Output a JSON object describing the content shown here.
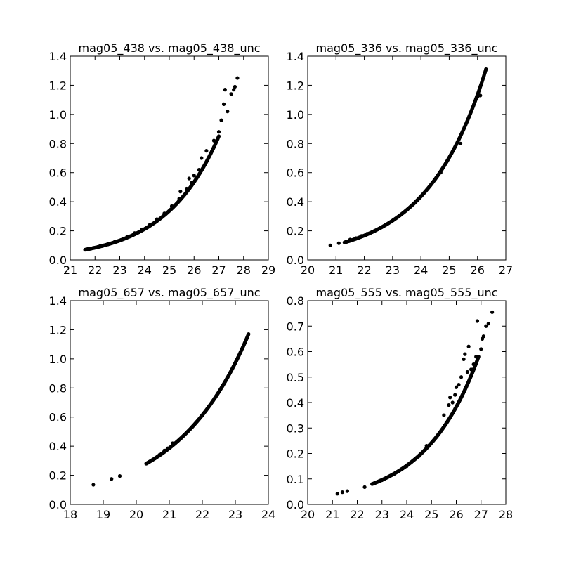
{
  "chart_data": [
    {
      "type": "scatter",
      "title": "mag05_438 vs. mag05_438_unc",
      "xlabel": "",
      "ylabel": "",
      "xlim": [
        21,
        29
      ],
      "ylim": [
        0.0,
        1.4
      ],
      "xticks": [
        "21",
        "22",
        "23",
        "24",
        "25",
        "26",
        "27",
        "28",
        "29"
      ],
      "yticks": [
        "0.0",
        "0.2",
        "0.4",
        "0.6",
        "0.8",
        "1.0",
        "1.2",
        "1.4"
      ],
      "grid": false,
      "marker_color": "#000000",
      "curve": {
        "x0": 21.6,
        "x1": 27.0,
        "y0": 0.07,
        "y1": 0.85
      },
      "points": [
        [
          21.6,
          0.07
        ],
        [
          21.7,
          0.075
        ],
        [
          22.2,
          0.095
        ],
        [
          22.8,
          0.125
        ],
        [
          23.0,
          0.135
        ],
        [
          23.3,
          0.16
        ],
        [
          23.6,
          0.185
        ],
        [
          23.9,
          0.21
        ],
        [
          24.2,
          0.24
        ],
        [
          24.5,
          0.28
        ],
        [
          24.8,
          0.32
        ],
        [
          25.1,
          0.37
        ],
        [
          25.4,
          0.42
        ],
        [
          25.45,
          0.47
        ],
        [
          25.7,
          0.49
        ],
        [
          25.8,
          0.56
        ],
        [
          25.9,
          0.53
        ],
        [
          26.0,
          0.58
        ],
        [
          26.2,
          0.62
        ],
        [
          26.3,
          0.7
        ],
        [
          26.5,
          0.75
        ],
        [
          26.8,
          0.82
        ],
        [
          27.0,
          0.88
        ],
        [
          27.1,
          0.96
        ],
        [
          27.2,
          1.07
        ],
        [
          27.25,
          1.17
        ],
        [
          27.35,
          1.02
        ],
        [
          27.5,
          1.14
        ],
        [
          27.6,
          1.17
        ],
        [
          27.65,
          1.19
        ],
        [
          27.75,
          1.25
        ]
      ]
    },
    {
      "type": "scatter",
      "title": "mag05_336 vs. mag05_336_unc",
      "xlabel": "",
      "ylabel": "",
      "xlim": [
        20,
        27
      ],
      "ylim": [
        0.0,
        1.4
      ],
      "xticks": [
        "20",
        "21",
        "22",
        "23",
        "24",
        "25",
        "26",
        "27"
      ],
      "yticks": [
        "0.0",
        "0.2",
        "0.4",
        "0.6",
        "0.8",
        "1.0",
        "1.2",
        "1.4"
      ],
      "grid": false,
      "marker_color": "#000000",
      "curve": {
        "x0": 21.3,
        "x1": 26.3,
        "y0": 0.12,
        "y1": 1.31
      },
      "points": [
        [
          20.8,
          0.1
        ],
        [
          21.1,
          0.115
        ],
        [
          21.35,
          0.125
        ],
        [
          21.5,
          0.14
        ],
        [
          21.7,
          0.15
        ],
        [
          21.9,
          0.165
        ],
        [
          22.1,
          0.18
        ],
        [
          24.7,
          0.6
        ],
        [
          25.4,
          0.8
        ],
        [
          26.0,
          1.12
        ],
        [
          26.1,
          1.13
        ],
        [
          26.3,
          1.31
        ]
      ]
    },
    {
      "type": "scatter",
      "title": "mag05_657 vs. mag05_657_unc",
      "xlabel": "",
      "ylabel": "",
      "xlim": [
        18,
        24
      ],
      "ylim": [
        0.0,
        1.4
      ],
      "xticks": [
        "18",
        "19",
        "20",
        "21",
        "22",
        "23",
        "24"
      ],
      "yticks": [
        "0.0",
        "0.2",
        "0.4",
        "0.6",
        "0.8",
        "1.0",
        "1.2",
        "1.4"
      ],
      "grid": false,
      "marker_color": "#000000",
      "curve": {
        "x0": 20.3,
        "x1": 23.4,
        "y0": 0.28,
        "y1": 1.17
      },
      "points": [
        [
          18.7,
          0.135
        ],
        [
          19.25,
          0.175
        ],
        [
          19.5,
          0.195
        ],
        [
          20.3,
          0.28
        ],
        [
          20.45,
          0.3
        ],
        [
          20.6,
          0.32
        ],
        [
          20.7,
          0.34
        ],
        [
          20.85,
          0.37
        ],
        [
          20.95,
          0.385
        ],
        [
          21.1,
          0.42
        ]
      ]
    },
    {
      "type": "scatter",
      "title": "mag05_555 vs. mag05_555_unc",
      "xlabel": "",
      "ylabel": "",
      "xlim": [
        20,
        28
      ],
      "ylim": [
        0.0,
        0.8
      ],
      "xticks": [
        "20",
        "21",
        "22",
        "23",
        "24",
        "25",
        "26",
        "27",
        "28"
      ],
      "yticks": [
        "0.0",
        "0.1",
        "0.2",
        "0.3",
        "0.4",
        "0.5",
        "0.6",
        "0.7",
        "0.8"
      ],
      "grid": false,
      "marker_color": "#000000",
      "curve": {
        "x0": 22.6,
        "x1": 26.9,
        "y0": 0.08,
        "y1": 0.58
      },
      "points": [
        [
          21.2,
          0.042
        ],
        [
          21.4,
          0.048
        ],
        [
          21.6,
          0.052
        ],
        [
          22.3,
          0.068
        ],
        [
          22.7,
          0.082
        ],
        [
          23.0,
          0.095
        ],
        [
          23.5,
          0.12
        ],
        [
          24.0,
          0.15
        ],
        [
          24.5,
          0.19
        ],
        [
          24.8,
          0.23
        ],
        [
          25.5,
          0.35
        ],
        [
          25.6,
          0.32
        ],
        [
          25.7,
          0.39
        ],
        [
          25.75,
          0.42
        ],
        [
          25.85,
          0.4
        ],
        [
          25.95,
          0.43
        ],
        [
          26.0,
          0.46
        ],
        [
          26.1,
          0.47
        ],
        [
          26.2,
          0.5
        ],
        [
          26.3,
          0.57
        ],
        [
          26.35,
          0.59
        ],
        [
          26.45,
          0.52
        ],
        [
          26.5,
          0.62
        ],
        [
          26.6,
          0.53
        ],
        [
          26.7,
          0.55
        ],
        [
          26.8,
          0.58
        ],
        [
          26.85,
          0.72
        ],
        [
          27.0,
          0.61
        ],
        [
          27.05,
          0.65
        ],
        [
          27.1,
          0.66
        ],
        [
          27.2,
          0.7
        ],
        [
          27.3,
          0.71
        ],
        [
          27.45,
          0.755
        ]
      ]
    }
  ]
}
